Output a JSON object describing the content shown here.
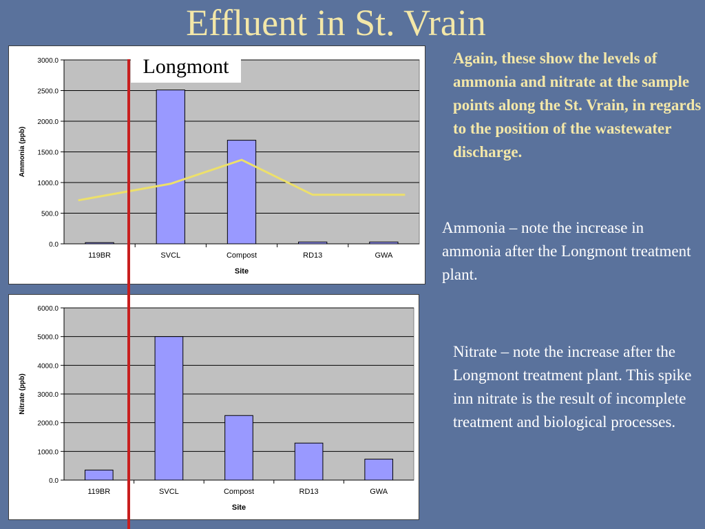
{
  "slide": {
    "title": "Effluent in St. Vrain",
    "callout_label": "Longmont",
    "notes": {
      "bold": "Again, these show the levels of ammonia and nitrate at the sample points along the St. Vrain, in regards to the position of the wastewater discharge.",
      "ammonia": "Ammonia – note the increase in ammonia after the Longmont treatment plant.",
      "nitrate": "Nitrate – note the increase after the Longmont treatment plant.  This spike inn nitrate is the result of  incomplete treatment and biological processes."
    },
    "colors": {
      "background": "#5a729c",
      "title": "#f3e7a8",
      "bar": "#9999ff",
      "plot_area": "#c0c0c0",
      "trend_line": "#ede06a",
      "divider": "#c81e1e"
    }
  },
  "chart_data": [
    {
      "type": "bar",
      "categories": [
        "119BR",
        "SVCL",
        "Compost",
        "RD13",
        "GWA"
      ],
      "values": [
        20,
        2510,
        1690,
        30,
        30
      ],
      "line": [
        710,
        980,
        1370,
        800,
        800
      ],
      "xlabel": "Site",
      "ylabel": "Ammonia (ppb)",
      "ylim": [
        0,
        3000
      ],
      "yticks": [
        "0.0",
        "500.0",
        "1000.0",
        "1500.0",
        "2000.0",
        "2500.0",
        "3000.0"
      ],
      "grid": true
    },
    {
      "type": "bar",
      "categories": [
        "119BR",
        "SVCL",
        "Compost",
        "RD13",
        "GWA"
      ],
      "values": [
        350,
        5000,
        2250,
        1290,
        730
      ],
      "xlabel": "Site",
      "ylabel": "Nitrate (ppb)",
      "ylim": [
        0,
        6000
      ],
      "yticks": [
        "0.0",
        "1000.0",
        "2000.0",
        "3000.0",
        "4000.0",
        "5000.0",
        "6000.0"
      ],
      "grid": true
    }
  ]
}
